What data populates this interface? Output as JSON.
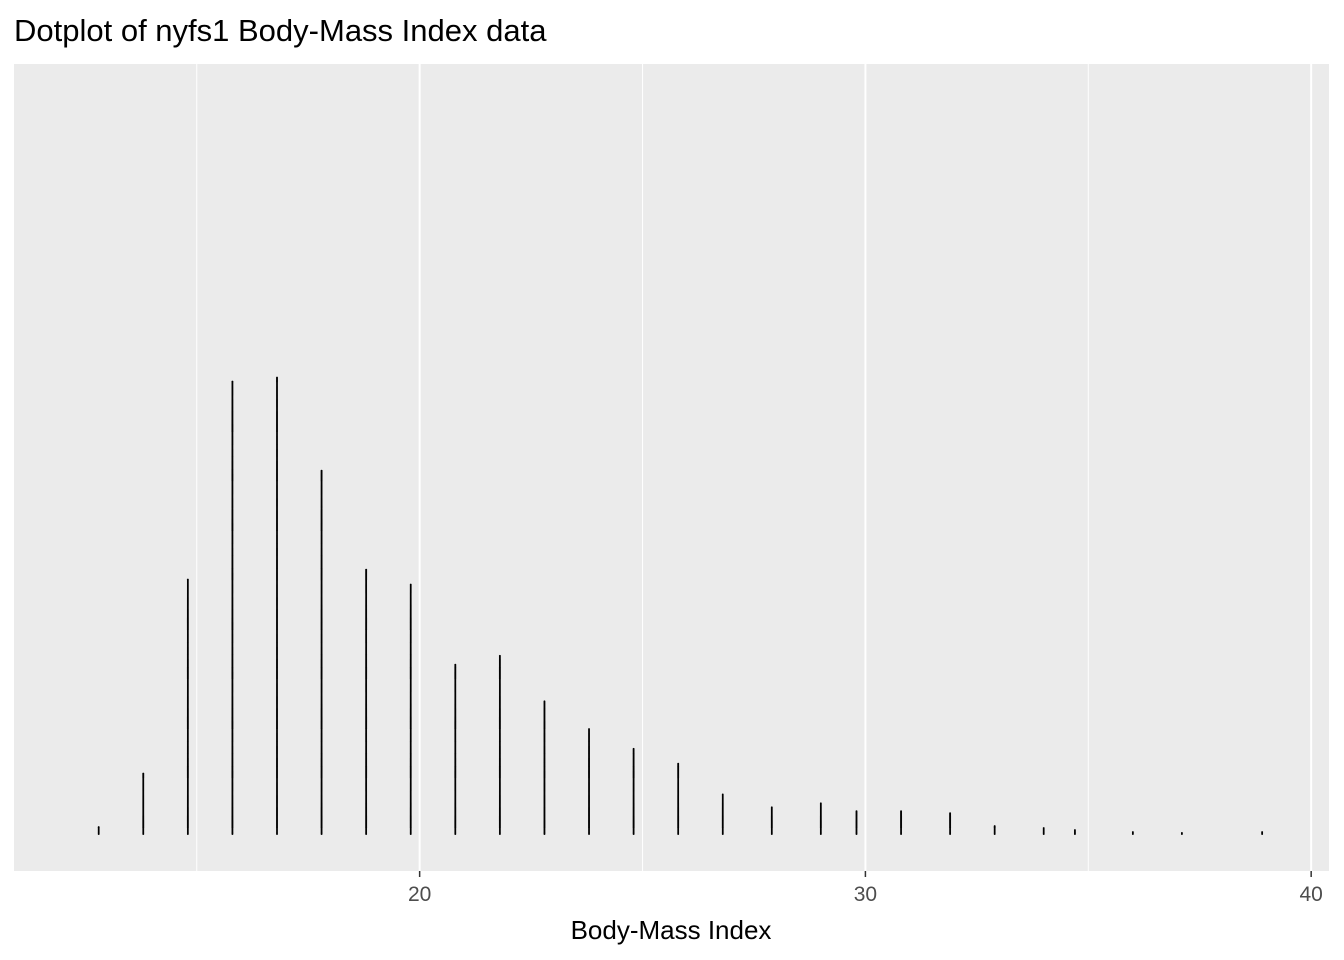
{
  "chart_data": {
    "type": "dotplot",
    "title": "Dotplot of nyfs1 Body-Mass Index data",
    "xlabel": "Body-Mass Index",
    "ylabel": "",
    "xlim": [
      10.9,
      40.4
    ],
    "x_ticks": [
      20,
      30,
      40
    ],
    "x_tick_labels": [
      "20",
      "30",
      "40"
    ],
    "x_minor_ticks": [
      15,
      25,
      35
    ],
    "grid": true,
    "legend": "none",
    "colors": {
      "panel": "#ebebeb",
      "grid": "#ffffff",
      "dots": "#000000",
      "tick_label": "#4d4d4d"
    },
    "stacks": [
      {
        "x": 12.8,
        "count": 8
      },
      {
        "x": 13.8,
        "count": 62
      },
      {
        "x": 14.8,
        "count": 258
      },
      {
        "x": 15.8,
        "count": 458
      },
      {
        "x": 16.8,
        "count": 462
      },
      {
        "x": 17.8,
        "count": 368
      },
      {
        "x": 18.8,
        "count": 268
      },
      {
        "x": 19.8,
        "count": 253
      },
      {
        "x": 20.8,
        "count": 172
      },
      {
        "x": 21.8,
        "count": 181
      },
      {
        "x": 22.8,
        "count": 135
      },
      {
        "x": 23.8,
        "count": 107
      },
      {
        "x": 24.8,
        "count": 87
      },
      {
        "x": 25.8,
        "count": 72
      },
      {
        "x": 26.8,
        "count": 41
      },
      {
        "x": 27.9,
        "count": 28
      },
      {
        "x": 29.0,
        "count": 32
      },
      {
        "x": 29.8,
        "count": 24
      },
      {
        "x": 30.8,
        "count": 24
      },
      {
        "x": 31.9,
        "count": 22
      },
      {
        "x": 32.9,
        "count": 9
      },
      {
        "x": 34.0,
        "count": 7
      },
      {
        "x": 34.7,
        "count": 5
      },
      {
        "x": 36.0,
        "count": 3
      },
      {
        "x": 37.1,
        "count": 2
      },
      {
        "x": 38.9,
        "count": 3
      }
    ]
  }
}
